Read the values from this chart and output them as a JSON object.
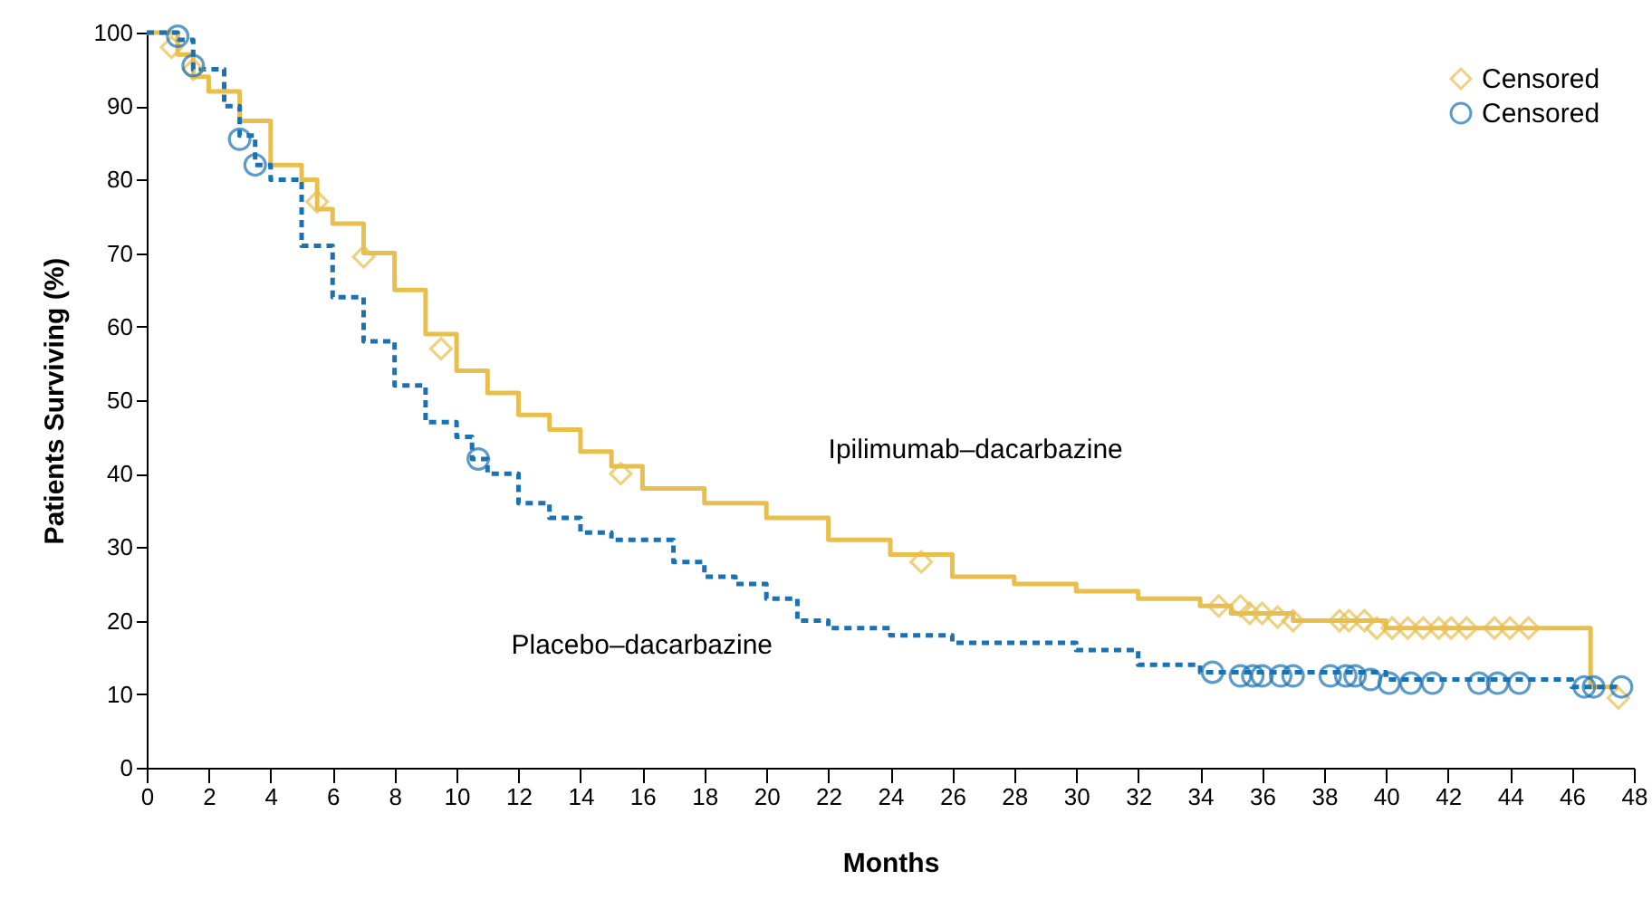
{
  "chart_data": {
    "type": "step",
    "xlabel": "Months",
    "ylabel": "Patients Surviving (%)",
    "xlim": [
      0,
      48
    ],
    "ylim": [
      0,
      100
    ],
    "xticks": [
      0,
      2,
      4,
      6,
      8,
      10,
      12,
      14,
      16,
      18,
      20,
      22,
      24,
      26,
      28,
      30,
      32,
      34,
      36,
      38,
      40,
      42,
      44,
      46,
      48
    ],
    "yticks": [
      0,
      10,
      20,
      30,
      40,
      50,
      60,
      70,
      80,
      90,
      100
    ],
    "grid": false,
    "legend": "top right",
    "series": [
      {
        "name": "Ipilimumab–dacarbazine",
        "color": "#e8bf4d",
        "line_style": "solid",
        "marker": "none",
        "x": [
          0,
          1,
          1.5,
          2,
          3,
          4,
          5,
          5.5,
          6,
          7,
          8,
          9,
          10,
          11,
          12,
          13,
          14,
          15,
          16,
          18,
          20,
          22,
          24,
          26,
          28,
          30,
          32,
          34,
          35,
          37,
          40,
          46.6,
          47.5
        ],
        "values": [
          100,
          97,
          94,
          92,
          88,
          82,
          80,
          76,
          74,
          70,
          65,
          59,
          54,
          51,
          48,
          46,
          43,
          41,
          38,
          36,
          34,
          31,
          29,
          26,
          25,
          24,
          23,
          22,
          21,
          20,
          19,
          11,
          11
        ]
      },
      {
        "name": "Placebo–dacarbazine",
        "color": "#1a72b5",
        "line_style": "dashed",
        "marker": "none",
        "x": [
          0,
          1,
          1.5,
          2.5,
          3,
          3.5,
          4,
          5,
          6,
          7,
          8,
          9,
          10,
          10.5,
          11,
          12,
          13,
          14,
          15,
          17,
          18,
          19,
          20,
          21,
          22,
          24,
          26,
          30,
          32,
          34,
          40,
          46,
          47.6
        ],
        "values": [
          100,
          99,
          95,
          90,
          86,
          82,
          80,
          71,
          64,
          58,
          52,
          47,
          45,
          42,
          40,
          36,
          34,
          32,
          31,
          28,
          26,
          25,
          23,
          20,
          19,
          18,
          17,
          16,
          14,
          13,
          12,
          11,
          11
        ]
      },
      {
        "type": "scatter",
        "name": "Censored",
        "color": "#e8bf4d",
        "marker": "diamond",
        "x": [
          0.8,
          1.5,
          5.5,
          7,
          9.5,
          15.3,
          25,
          34.6,
          35.3,
          35.6,
          36,
          36.5,
          37,
          38.5,
          38.8,
          39.3,
          39.7,
          40.2,
          40.7,
          41.2,
          41.7,
          42.1,
          42.6,
          43.5,
          44,
          44.6,
          47.5
        ],
        "values": [
          98,
          95,
          77,
          69.5,
          57,
          40,
          28,
          22,
          22,
          21,
          21,
          20.5,
          20,
          20,
          20,
          20,
          19,
          19,
          19,
          19,
          19,
          19,
          19,
          19,
          19,
          19,
          9.5
        ]
      },
      {
        "type": "scatter",
        "name": "Censored",
        "color": "#1a72b5",
        "marker": "circle",
        "x": [
          1,
          1.5,
          3,
          3.5,
          10.7,
          34.4,
          35.3,
          35.7,
          36,
          36.6,
          37,
          38.2,
          38.7,
          39,
          39.5,
          40.1,
          40.8,
          41.5,
          43,
          43.6,
          44.3,
          46.4,
          46.7,
          47.6
        ],
        "values": [
          99.5,
          95.5,
          85.5,
          82,
          42,
          13,
          12.5,
          12.5,
          12.5,
          12.5,
          12.5,
          12.5,
          12.5,
          12.5,
          12,
          11.5,
          11.5,
          11.5,
          11.5,
          11.5,
          11.5,
          11,
          11,
          11
        ]
      }
    ]
  }
}
